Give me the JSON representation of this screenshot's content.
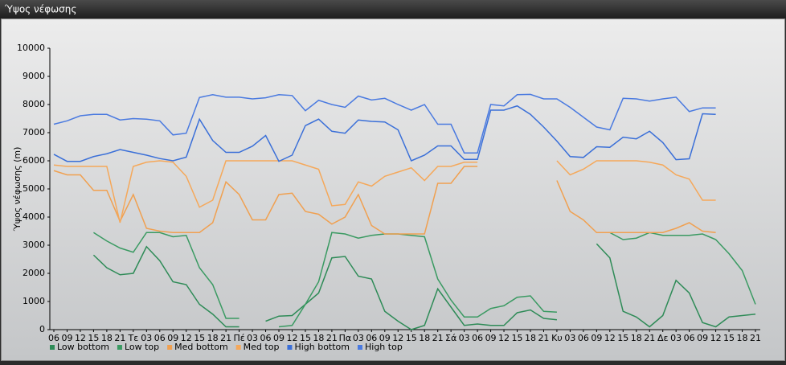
{
  "chart_data": {
    "type": "line",
    "title": "Ύψος νέφωσης",
    "y_label": "Ύψος νέφωσης (m)",
    "categories": [
      "06",
      "09",
      "12",
      "15",
      "18",
      "21",
      "Τε",
      "03",
      "06",
      "09",
      "12",
      "15",
      "18",
      "21",
      "Πέ",
      "03",
      "06",
      "09",
      "12",
      "15",
      "18",
      "21",
      "Πα",
      "03",
      "06",
      "09",
      "12",
      "15",
      "18",
      "21",
      "Σά",
      "03",
      "06",
      "09",
      "12",
      "15",
      "18",
      "21",
      "Κυ",
      "03",
      "06",
      "09",
      "12",
      "15",
      "18",
      "21",
      "Δε",
      "03",
      "06",
      "09",
      "12",
      "15",
      "18",
      "21"
    ],
    "ylim": [
      0,
      10000
    ],
    "yticks": [
      0,
      1000,
      2000,
      3000,
      4000,
      5000,
      6000,
      7000,
      8000,
      9000,
      10000
    ],
    "grid": false,
    "series": [
      {
        "name": "Low bottom",
        "color": "#2e8b57",
        "values": [
          null,
          null,
          null,
          2650,
          2200,
          1950,
          2000,
          2950,
          2450,
          1700,
          1600,
          900,
          550,
          100,
          100,
          null,
          300,
          480,
          500,
          900,
          1300,
          2550,
          2600,
          1900,
          1800,
          650,
          300,
          0,
          150,
          1450,
          800,
          150,
          200,
          150,
          150,
          600,
          700,
          400,
          350,
          null,
          null,
          3050,
          2550,
          650,
          450,
          100,
          500,
          1750,
          1300,
          250,
          100,
          450,
          500,
          550
        ]
      },
      {
        "name": "Low top",
        "color": "#3a9a62",
        "values": [
          null,
          null,
          null,
          3450,
          3150,
          2900,
          2750,
          3450,
          3450,
          3300,
          3350,
          2200,
          1600,
          400,
          400,
          null,
          null,
          100,
          150,
          900,
          1700,
          3450,
          3400,
          3250,
          3350,
          3400,
          3400,
          3350,
          3300,
          1800,
          1050,
          450,
          450,
          750,
          850,
          1150,
          1200,
          650,
          620,
          null,
          null,
          3450,
          3450,
          3200,
          3250,
          3450,
          3350,
          3350,
          3350,
          3400,
          3200,
          2700,
          2100,
          900
        ]
      },
      {
        "name": "Med bottom",
        "color": "#f0a050",
        "values": [
          5650,
          5500,
          5500,
          4950,
          4950,
          3850,
          4800,
          3600,
          3500,
          3450,
          3450,
          3450,
          3800,
          5250,
          4800,
          3900,
          3900,
          4800,
          4850,
          4200,
          4100,
          3750,
          4000,
          4800,
          3700,
          3400,
          3400,
          3400,
          3400,
          5200,
          5200,
          5800,
          5800,
          null,
          null,
          null,
          null,
          null,
          5300,
          4200,
          3900,
          3450,
          3450,
          3450,
          3450,
          3450,
          3450,
          3600,
          3800,
          3500,
          3450,
          null,
          null,
          null
        ]
      },
      {
        "name": "Med top",
        "color": "#f5a85a",
        "values": [
          5850,
          5800,
          5800,
          5800,
          5800,
          3800,
          5800,
          5950,
          6000,
          5950,
          5450,
          4350,
          4600,
          6000,
          6000,
          6000,
          6000,
          6000,
          6000,
          5850,
          5700,
          4400,
          4450,
          5250,
          5100,
          5450,
          5600,
          5750,
          5300,
          5800,
          5800,
          5950,
          5950,
          null,
          null,
          null,
          null,
          null,
          6000,
          5500,
          5700,
          6000,
          6000,
          6000,
          6000,
          5950,
          5850,
          5500,
          5350,
          4600,
          4600,
          null,
          null,
          null
        ]
      },
      {
        "name": "High bottom",
        "color": "#3a6fd8",
        "values": [
          6230,
          5980,
          5980,
          6150,
          6250,
          6400,
          6300,
          6200,
          6080,
          6000,
          6130,
          7480,
          6720,
          6300,
          6300,
          6520,
          6900,
          5980,
          6200,
          7250,
          7480,
          7050,
          6980,
          7450,
          7400,
          7380,
          7100,
          6000,
          6200,
          6530,
          6530,
          6050,
          6050,
          7800,
          7800,
          7950,
          7650,
          7200,
          6700,
          6150,
          6120,
          6500,
          6480,
          6840,
          6780,
          7050,
          6650,
          6040,
          6070,
          7670,
          7650,
          null,
          null,
          null
        ]
      },
      {
        "name": "High top",
        "color": "#4a7ae0",
        "values": [
          7300,
          7420,
          7600,
          7650,
          7650,
          7450,
          7500,
          7480,
          7420,
          6920,
          6980,
          8250,
          8350,
          8260,
          8260,
          8200,
          8240,
          8350,
          8320,
          7780,
          8150,
          8000,
          7900,
          8300,
          8160,
          8220,
          8000,
          7800,
          8000,
          7300,
          7300,
          6280,
          6280,
          8000,
          7950,
          8350,
          8360,
          8200,
          8200,
          7900,
          7550,
          7200,
          7100,
          8220,
          8200,
          8120,
          8200,
          8260,
          7750,
          7880,
          7880,
          null,
          null,
          null
        ]
      }
    ]
  }
}
